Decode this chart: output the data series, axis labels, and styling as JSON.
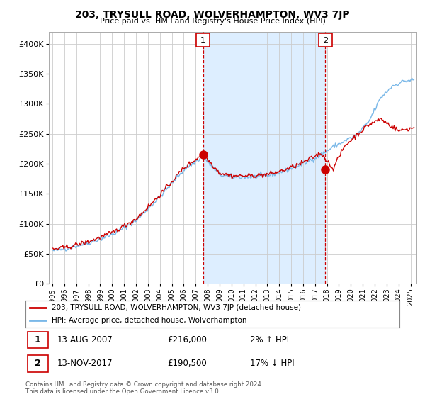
{
  "title": "203, TRYSULL ROAD, WOLVERHAMPTON, WV3 7JP",
  "subtitle": "Price paid vs. HM Land Registry's House Price Index (HPI)",
  "ytick_values": [
    0,
    50000,
    100000,
    150000,
    200000,
    250000,
    300000,
    350000,
    400000
  ],
  "ylim": [
    0,
    420000
  ],
  "xlim_start": 1994.7,
  "xlim_end": 2025.5,
  "hpi_color": "#7ab8e8",
  "price_color": "#cc0000",
  "shade_color": "#ddeeff",
  "marker_color": "#cc0000",
  "marker1_x": 2007.617,
  "marker1_y": 216000,
  "marker2_x": 2017.867,
  "marker2_y": 190500,
  "legend_label1": "203, TRYSULL ROAD, WOLVERHAMPTON, WV3 7JP (detached house)",
  "legend_label2": "HPI: Average price, detached house, Wolverhampton",
  "annotation1_num": "1",
  "annotation1_date": "13-AUG-2007",
  "annotation1_price": "£216,000",
  "annotation1_hpi": "2% ↑ HPI",
  "annotation2_num": "2",
  "annotation2_date": "13-NOV-2017",
  "annotation2_price": "£190,500",
  "annotation2_hpi": "17% ↓ HPI",
  "footnote": "Contains HM Land Registry data © Crown copyright and database right 2024.\nThis data is licensed under the Open Government Licence v3.0.",
  "bg_color": "#ffffff",
  "grid_color": "#cccccc",
  "xtick_labels": [
    "1995",
    "1996",
    "1997",
    "1998",
    "1999",
    "2000",
    "2001",
    "2002",
    "2003",
    "2004",
    "2005",
    "2006",
    "2007",
    "2008",
    "2009",
    "2010",
    "2011",
    "2012",
    "2013",
    "2014",
    "2015",
    "2016",
    "2017",
    "2018",
    "2019",
    "2020",
    "2021",
    "2022",
    "2023",
    "2024",
    "2025"
  ]
}
